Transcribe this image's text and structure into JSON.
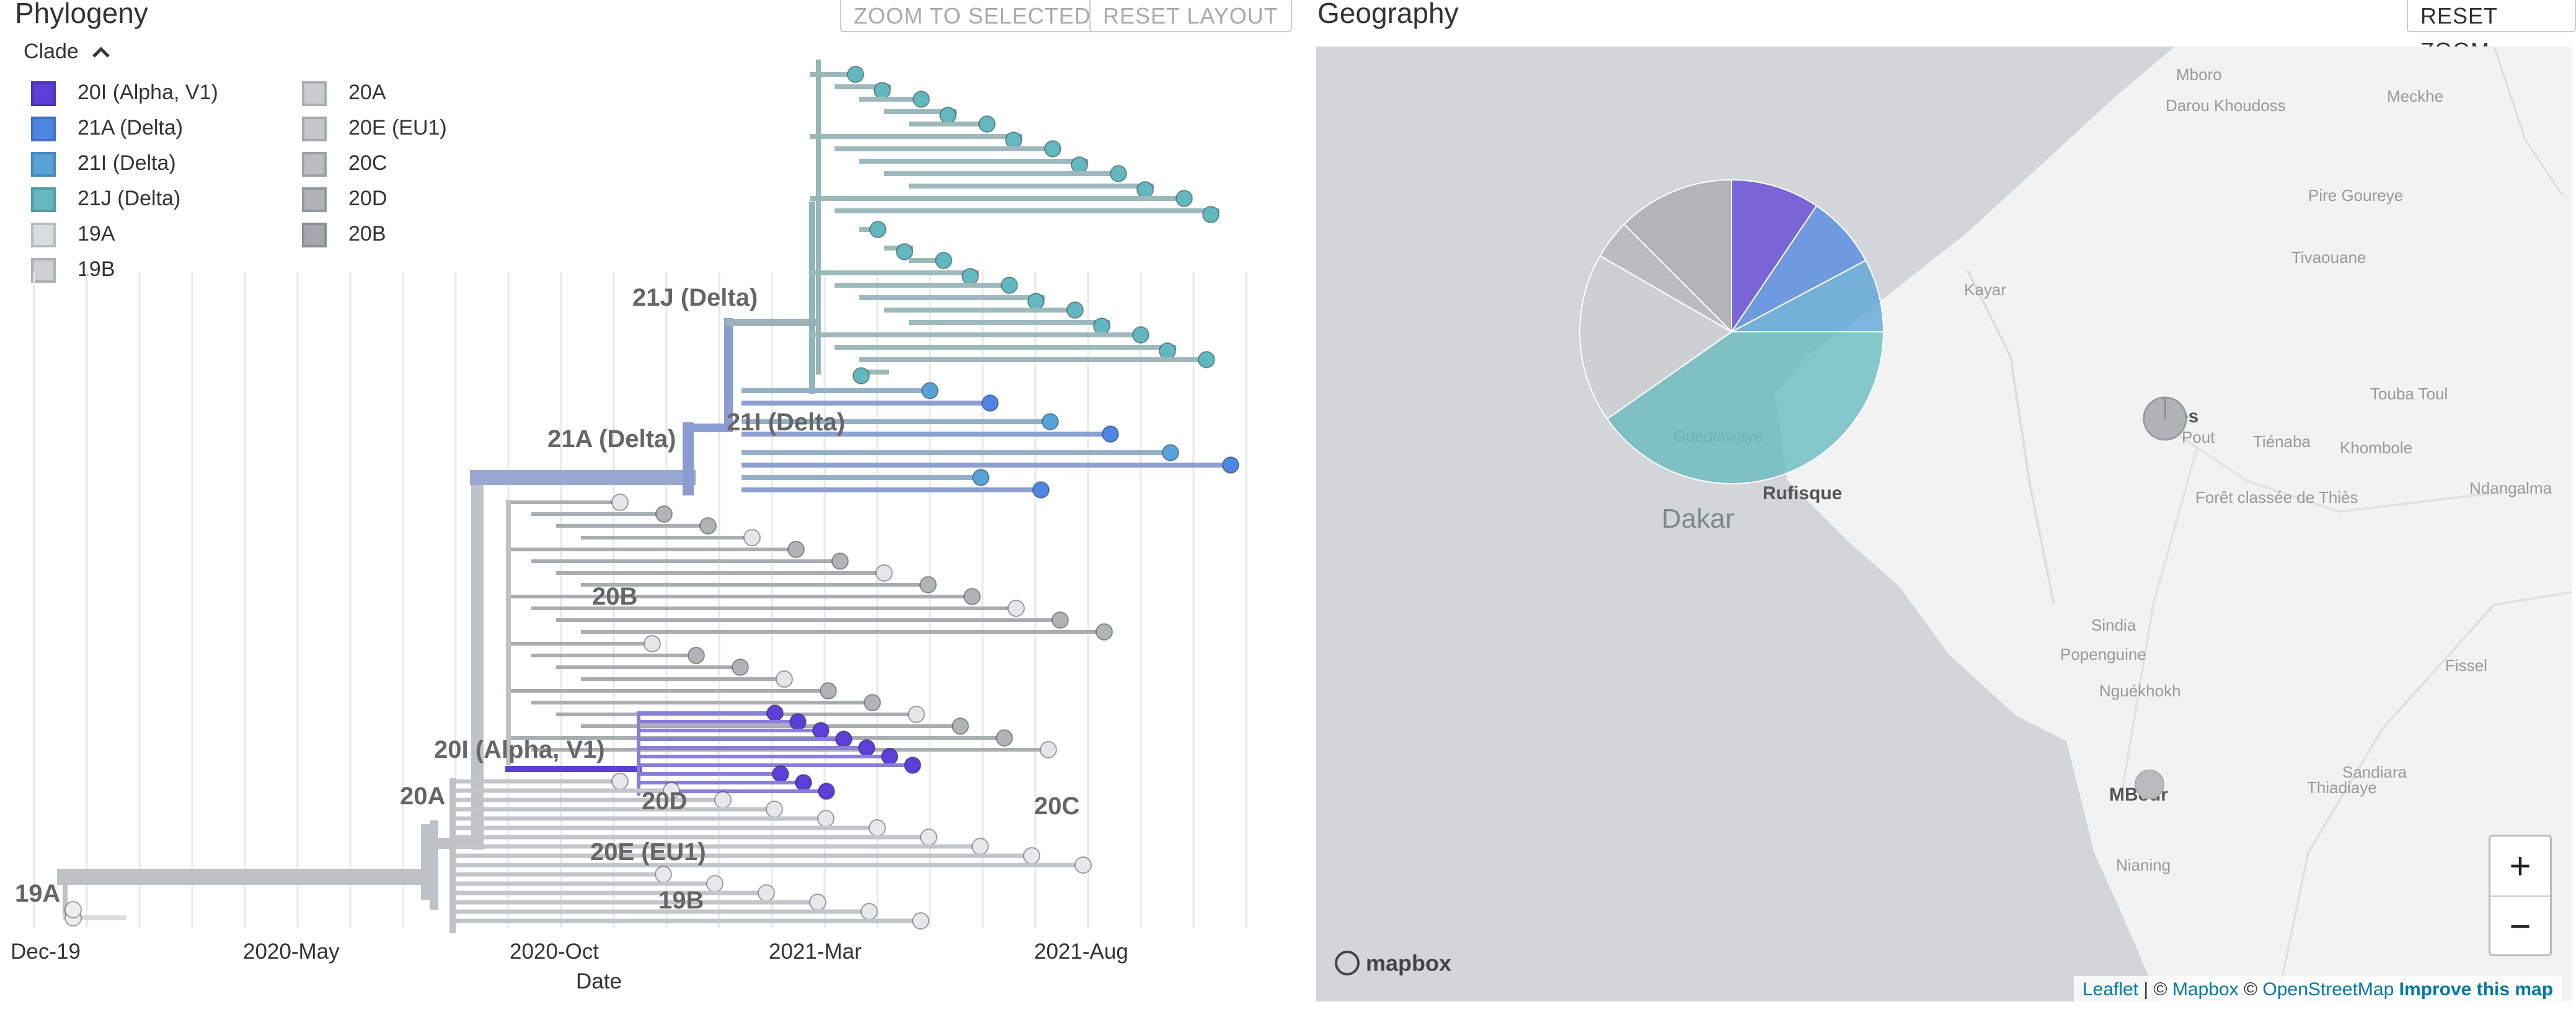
{
  "phylogeny": {
    "title": "Phylogeny",
    "zoom_to_selected": "ZOOM TO SELECTED",
    "reset_layout": "RESET LAYOUT",
    "legend_title": "Clade",
    "legend": [
      {
        "label": "20I (Alpha, V1)",
        "color": "#5B3FD6"
      },
      {
        "label": "21A (Delta)",
        "color": "#4D85E3"
      },
      {
        "label": "21I (Delta)",
        "color": "#56A3DA"
      },
      {
        "label": "21J (Delta)",
        "color": "#62B8BE"
      },
      {
        "label": "19A",
        "color": "#D8DDE0"
      },
      {
        "label": "19B",
        "color": "#CDD1D4"
      },
      {
        "label": "20A",
        "color": "#C9CDD0"
      },
      {
        "label": "20E (EU1)",
        "color": "#C3C7CA"
      },
      {
        "label": "20C",
        "color": "#BABEC2"
      },
      {
        "label": "20D",
        "color": "#B0B4B9"
      },
      {
        "label": "20B",
        "color": "#A5A9AF"
      }
    ],
    "clade_labels": [
      {
        "text": "21J (Delta)"
      },
      {
        "text": "21A (Delta)"
      },
      {
        "text": "21I (Delta)"
      },
      {
        "text": "20B"
      },
      {
        "text": "20I (Alpha, V1)"
      },
      {
        "text": "20A"
      },
      {
        "text": "20D"
      },
      {
        "text": "20C"
      },
      {
        "text": "20E (EU1)"
      },
      {
        "text": "19A"
      },
      {
        "text": "19B"
      }
    ],
    "axis_ticks": [
      "19-Dec",
      "2020-May",
      "2020-Oct",
      "2021-Mar",
      "2021-Aug"
    ],
    "axis_title": "Date"
  },
  "geography": {
    "title": "Geography",
    "reset_zoom": "RESET ZOOM",
    "places": [
      "Mboro",
      "Darou Khoudoss",
      "Meckhe",
      "Pire Goureye",
      "Tivaouane",
      "Kayar",
      "Thiès",
      "Touba Toul",
      "Tiénaba",
      "Khombole",
      "Ndangalma",
      "Pout",
      "Forêt classée de Thiès",
      "Guediawaye",
      "Rufisque",
      "Dakar",
      "Sindia",
      "Popenguine",
      "Nguékhokh",
      "Fissel",
      "Sandiara",
      "Thiadiaye",
      "MBour",
      "Nianing"
    ],
    "zoom_in": "+",
    "zoom_out": "−",
    "logo": "mapbox",
    "attribution": {
      "leaflet": "Leaflet",
      "sep1": " | © ",
      "mapbox": "Mapbox",
      "sep2": " © ",
      "osm": "OpenStreetMap",
      "improve": "Improve this map"
    }
  }
}
